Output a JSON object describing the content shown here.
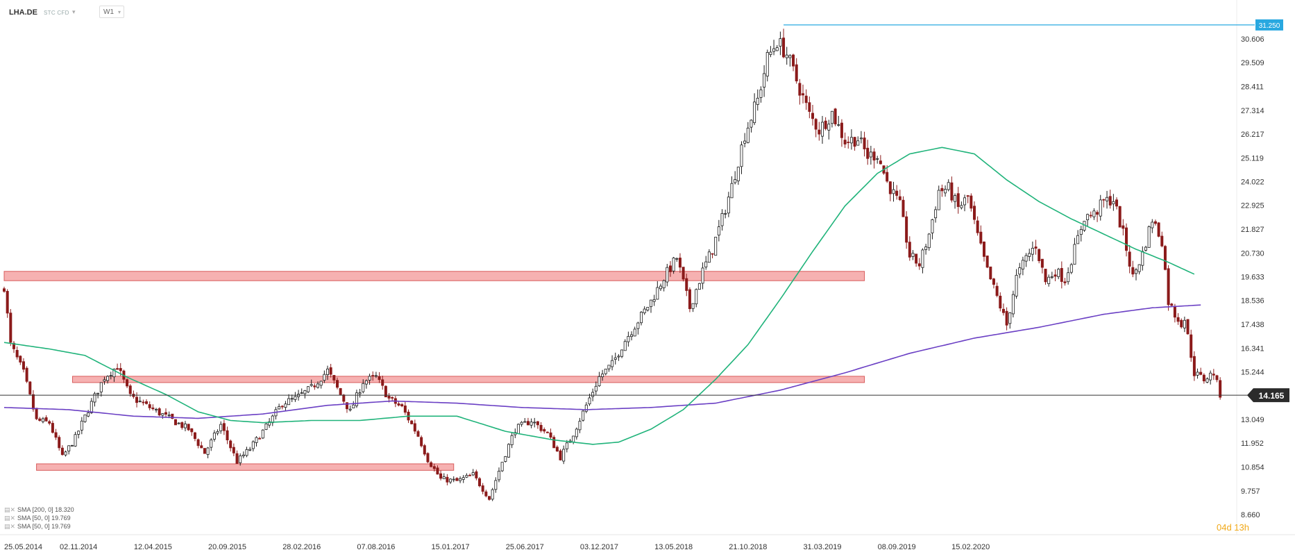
{
  "header": {
    "symbol": "LHA.DE",
    "subtitle": "STC CFD",
    "timeframe": "W1"
  },
  "colors": {
    "candle_up": "#1a1a1a",
    "candle_down": "#8b1a1a",
    "zone_fill": "#f4a3a3",
    "zone_stroke": "#d85c5c",
    "sma200": "#6a3fc4",
    "sma50": "#1fb37a",
    "high_line": "#29a8e0",
    "price_label_bg": "#2b2b2b"
  },
  "legend": [
    {
      "text": "SMA [200, 0] 18.320"
    },
    {
      "text": "SMA [50, 0] 19.769"
    },
    {
      "text": "SMA [50, 0] 19.769"
    }
  ],
  "countdown": "04d 13h",
  "chart_data": {
    "type": "candlestick",
    "x_dates": [
      "25.05.2014",
      "02.11.2014",
      "12.04.2015",
      "20.09.2015",
      "28.02.2016",
      "07.08.2016",
      "15.01.2017",
      "25.06.2017",
      "03.12.2017",
      "13.05.2018",
      "21.10.2018",
      "31.03.2019",
      "08.09.2019",
      "15.02.2020"
    ],
    "y_ticks": [
      "30.606",
      "29.509",
      "28.411",
      "27.314",
      "26.217",
      "25.119",
      "24.022",
      "22.925",
      "21.827",
      "20.730",
      "19.633",
      "18.536",
      "17.438",
      "16.341",
      "15.244",
      "14.165",
      "13.049",
      "11.952",
      "10.854",
      "9.757",
      "8.660"
    ],
    "ylim": [
      8.66,
      31.7
    ],
    "last_price": "14.165",
    "high_level": "31.250",
    "zones": [
      {
        "from": "25.05.2014",
        "to": "30.06.2019",
        "low": 19.45,
        "high": 19.88
      },
      {
        "from": "20.10.2014",
        "to": "30.06.2019",
        "low": 14.75,
        "high": 15.04
      },
      {
        "from": "03.08.2014",
        "to": "22.01.2017",
        "low": 10.7,
        "high": 11.0
      }
    ],
    "close_anchors": [
      [
        0,
        19.2
      ],
      [
        2,
        16.5
      ],
      [
        6,
        15.2
      ],
      [
        10,
        13.0
      ],
      [
        14,
        12.9
      ],
      [
        18,
        11.3
      ],
      [
        22,
        12.2
      ],
      [
        26,
        13.5
      ],
      [
        31,
        15.0
      ],
      [
        35,
        15.5
      ],
      [
        39,
        14.1
      ],
      [
        45,
        13.6
      ],
      [
        51,
        13.1
      ],
      [
        57,
        12.6
      ],
      [
        62,
        11.5
      ],
      [
        67,
        12.8
      ],
      [
        72,
        11.1
      ],
      [
        76,
        11.7
      ],
      [
        82,
        12.9
      ],
      [
        86,
        13.8
      ],
      [
        90,
        14.0
      ],
      [
        95,
        14.5
      ],
      [
        100,
        15.3
      ],
      [
        104,
        14.2
      ],
      [
        107,
        13.4
      ],
      [
        111,
        14.8
      ],
      [
        115,
        15.0
      ],
      [
        119,
        14.0
      ],
      [
        123,
        13.6
      ],
      [
        128,
        12.3
      ],
      [
        131,
        11.2
      ],
      [
        135,
        10.3
      ],
      [
        140,
        10.2
      ],
      [
        145,
        10.5
      ],
      [
        150,
        9.4
      ],
      [
        154,
        11.1
      ],
      [
        158,
        12.6
      ],
      [
        163,
        13.0
      ],
      [
        168,
        12.4
      ],
      [
        172,
        11.3
      ],
      [
        176,
        12.4
      ],
      [
        180,
        13.7
      ],
      [
        184,
        15.0
      ],
      [
        188,
        15.6
      ],
      [
        192,
        16.7
      ],
      [
        196,
        17.6
      ],
      [
        200,
        18.5
      ],
      [
        204,
        19.6
      ],
      [
        208,
        20.5
      ],
      [
        212,
        18.2
      ],
      [
        216,
        19.9
      ],
      [
        219,
        20.9
      ],
      [
        222,
        22.3
      ],
      [
        225,
        23.8
      ],
      [
        229,
        26.2
      ],
      [
        233,
        27.8
      ],
      [
        236,
        29.7
      ],
      [
        239,
        30.5
      ],
      [
        242,
        29.9
      ],
      [
        245,
        28.7
      ],
      [
        249,
        27.1
      ],
      [
        252,
        26.4
      ],
      [
        256,
        27.2
      ],
      [
        260,
        25.9
      ],
      [
        264,
        26.0
      ],
      [
        267,
        25.2
      ],
      [
        270,
        25.3
      ],
      [
        273,
        24.0
      ],
      [
        277,
        22.9
      ],
      [
        280,
        20.6
      ],
      [
        283,
        20.2
      ],
      [
        286,
        21.6
      ],
      [
        289,
        23.6
      ],
      [
        292,
        23.7
      ],
      [
        295,
        22.8
      ],
      [
        298,
        23.3
      ],
      [
        301,
        21.5
      ],
      [
        304,
        19.9
      ],
      [
        307,
        18.7
      ],
      [
        310,
        17.4
      ],
      [
        313,
        19.6
      ],
      [
        316,
        20.5
      ],
      [
        319,
        21.1
      ],
      [
        322,
        19.4
      ],
      [
        325,
        19.9
      ],
      [
        328,
        19.5
      ],
      [
        331,
        20.9
      ],
      [
        334,
        22.4
      ],
      [
        337,
        22.5
      ],
      [
        340,
        23.1
      ],
      [
        343,
        23.2
      ],
      [
        346,
        21.6
      ],
      [
        349,
        19.6
      ],
      [
        352,
        20.7
      ],
      [
        355,
        22.3
      ],
      [
        358,
        21.3
      ],
      [
        360,
        18.5
      ],
      [
        362,
        17.9
      ],
      [
        364,
        17.5
      ],
      [
        365,
        17.7
      ],
      [
        368,
        15.2
      ],
      [
        371,
        14.9
      ],
      [
        374,
        15.2
      ],
      [
        376,
        14.2
      ]
    ],
    "series": [
      {
        "name": "SMA [200, 0] 18.320",
        "anchors": [
          [
            0,
            13.6
          ],
          [
            20,
            13.5
          ],
          [
            40,
            13.2
          ],
          [
            60,
            13.1
          ],
          [
            80,
            13.3
          ],
          [
            100,
            13.7
          ],
          [
            120,
            13.9
          ],
          [
            140,
            13.8
          ],
          [
            160,
            13.6
          ],
          [
            180,
            13.5
          ],
          [
            200,
            13.6
          ],
          [
            220,
            13.8
          ],
          [
            240,
            14.4
          ],
          [
            260,
            15.2
          ],
          [
            280,
            16.1
          ],
          [
            300,
            16.8
          ],
          [
            320,
            17.3
          ],
          [
            340,
            17.9
          ],
          [
            355,
            18.2
          ],
          [
            370,
            18.33
          ]
        ]
      },
      {
        "name": "SMA [50, 0] 19.769",
        "anchors": [
          [
            0,
            16.6
          ],
          [
            14,
            16.3
          ],
          [
            25,
            16.0
          ],
          [
            38,
            15.0
          ],
          [
            50,
            14.2
          ],
          [
            60,
            13.4
          ],
          [
            70,
            13.0
          ],
          [
            80,
            12.9
          ],
          [
            95,
            13.0
          ],
          [
            110,
            13.0
          ],
          [
            125,
            13.2
          ],
          [
            140,
            13.2
          ],
          [
            155,
            12.5
          ],
          [
            170,
            12.1
          ],
          [
            182,
            11.9
          ],
          [
            190,
            12.0
          ],
          [
            200,
            12.6
          ],
          [
            210,
            13.5
          ],
          [
            220,
            14.9
          ],
          [
            230,
            16.5
          ],
          [
            240,
            18.6
          ],
          [
            250,
            20.8
          ],
          [
            260,
            22.9
          ],
          [
            270,
            24.4
          ],
          [
            280,
            25.3
          ],
          [
            290,
            25.6
          ],
          [
            300,
            25.3
          ],
          [
            310,
            24.1
          ],
          [
            320,
            23.1
          ],
          [
            330,
            22.3
          ],
          [
            340,
            21.6
          ],
          [
            350,
            20.9
          ],
          [
            360,
            20.3
          ],
          [
            368,
            19.75
          ]
        ]
      }
    ]
  }
}
